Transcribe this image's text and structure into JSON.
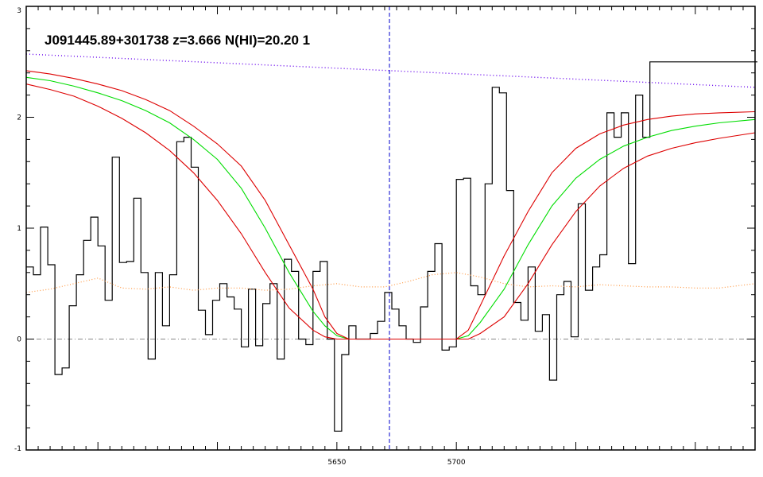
{
  "chart_data": {
    "type": "line",
    "title": "J091445.89+301738 z=3.666 N(HI)=20.20 1",
    "xlabel": "",
    "ylabel": "",
    "xlim": [
      5520,
      5825
    ],
    "ylim": [
      -1,
      3
    ],
    "x_ticks": [
      5650,
      5700
    ],
    "x_tick_labels": [
      "5650",
      "5700"
    ],
    "x_minor_step": 5,
    "x_major_step": 50,
    "y_ticks": [
      -1,
      0,
      1,
      2,
      3
    ],
    "y_tick_labels": [
      "-1",
      "0",
      "1",
      "2",
      "3"
    ],
    "grid": false,
    "legend": "none",
    "reference_line_x": 5672,
    "zero_line_y": 0,
    "colors": {
      "flux": "#000000",
      "model": "#00dd00",
      "model_bounds": "#dd0000",
      "continuum": "#6600ee",
      "error": "#ff9944",
      "reference": "#0000cc",
      "zero": "#888888"
    },
    "series": [
      {
        "id": "flux",
        "style": "step",
        "x": [
          5520,
          5523,
          5526,
          5529,
          5532,
          5535,
          5538,
          5541,
          5544,
          5547,
          5550,
          5553,
          5556,
          5559,
          5562,
          5565,
          5568,
          5571,
          5574,
          5577,
          5580,
          5583,
          5586,
          5589,
          5592,
          5595,
          5598,
          5601,
          5604,
          5607,
          5610,
          5613,
          5616,
          5619,
          5622,
          5625,
          5628,
          5631,
          5634,
          5637,
          5640,
          5643,
          5646,
          5649,
          5652,
          5655,
          5658,
          5661,
          5664,
          5667,
          5670,
          5673,
          5676,
          5679,
          5682,
          5685,
          5688,
          5691,
          5694,
          5697,
          5700,
          5703,
          5706,
          5709,
          5712,
          5715,
          5718,
          5721,
          5724,
          5727,
          5730,
          5733,
          5736,
          5739,
          5742,
          5745,
          5748,
          5751,
          5754,
          5757,
          5760,
          5763,
          5766,
          5769,
          5772,
          5775,
          5778,
          5781,
          5784,
          5787,
          5790,
          5793,
          5796,
          5799,
          5802,
          5805,
          5808,
          5811,
          5814,
          5817,
          5820,
          5823
        ],
        "y": [
          0.65,
          0.58,
          1.01,
          0.67,
          -0.32,
          -0.26,
          0.3,
          0.58,
          0.89,
          1.1,
          0.84,
          0.35,
          1.64,
          0.69,
          0.7,
          1.27,
          0.6,
          -0.18,
          0.6,
          0.12,
          0.58,
          1.78,
          1.82,
          1.55,
          0.26,
          0.04,
          0.35,
          0.5,
          0.38,
          0.27,
          -0.07,
          0.45,
          -0.06,
          0.32,
          0.5,
          -0.18,
          0.72,
          0.61,
          0.0,
          -0.05,
          0.61,
          0.7,
          0.0,
          -0.83,
          -0.14,
          0.12,
          0.0,
          0.0,
          0.05,
          0.16,
          0.42,
          0.27,
          0.12,
          0.0,
          -0.03,
          0.29,
          0.61,
          0.86,
          -0.1,
          -0.07,
          1.44,
          1.45,
          0.48,
          0.4,
          1.4,
          2.27,
          2.22,
          1.34,
          0.33,
          0.17,
          0.65,
          0.07,
          0.22,
          -0.37,
          0.4,
          0.52,
          0.02,
          1.22,
          0.44,
          0.65,
          0.76,
          2.04,
          1.82,
          2.04,
          0.68,
          2.2,
          1.82,
          2.5,
          2.5,
          2.5,
          2.5,
          2.5,
          2.5,
          2.5,
          2.5,
          2.5,
          2.5,
          2.5,
          2.5,
          2.5,
          2.5,
          2.5
        ]
      },
      {
        "id": "model",
        "style": "line",
        "x": [
          5520,
          5530,
          5540,
          5550,
          5560,
          5570,
          5580,
          5590,
          5600,
          5610,
          5620,
          5630,
          5640,
          5645,
          5650,
          5655,
          5660,
          5665,
          5670,
          5675,
          5680,
          5685,
          5690,
          5695,
          5700,
          5705,
          5710,
          5720,
          5730,
          5740,
          5750,
          5760,
          5770,
          5780,
          5790,
          5800,
          5810,
          5825
        ],
        "y": [
          2.36,
          2.33,
          2.28,
          2.22,
          2.15,
          2.06,
          1.95,
          1.8,
          1.62,
          1.36,
          1.0,
          0.6,
          0.25,
          0.12,
          0.03,
          0.0,
          0.0,
          0.0,
          0.0,
          0.0,
          0.0,
          0.0,
          0.0,
          0.0,
          0.0,
          0.03,
          0.15,
          0.45,
          0.85,
          1.2,
          1.45,
          1.62,
          1.74,
          1.82,
          1.88,
          1.92,
          1.95,
          1.98
        ]
      },
      {
        "id": "model_upper",
        "style": "line",
        "x": [
          5520,
          5530,
          5540,
          5550,
          5560,
          5570,
          5580,
          5590,
          5600,
          5610,
          5620,
          5630,
          5640,
          5645,
          5650,
          5655,
          5660,
          5665,
          5670,
          5675,
          5680,
          5685,
          5690,
          5695,
          5700,
          5705,
          5710,
          5720,
          5730,
          5740,
          5750,
          5760,
          5770,
          5780,
          5790,
          5800,
          5810,
          5825
        ],
        "y": [
          2.42,
          2.39,
          2.35,
          2.3,
          2.24,
          2.16,
          2.06,
          1.92,
          1.76,
          1.56,
          1.25,
          0.85,
          0.45,
          0.2,
          0.05,
          0.0,
          0.0,
          0.0,
          0.0,
          0.0,
          0.0,
          0.0,
          0.0,
          0.0,
          0.0,
          0.08,
          0.3,
          0.75,
          1.15,
          1.5,
          1.72,
          1.85,
          1.93,
          1.98,
          2.01,
          2.03,
          2.04,
          2.05
        ]
      },
      {
        "id": "model_lower",
        "style": "line",
        "x": [
          5520,
          5530,
          5540,
          5550,
          5560,
          5570,
          5580,
          5590,
          5600,
          5610,
          5620,
          5630,
          5640,
          5645,
          5650,
          5655,
          5660,
          5665,
          5670,
          5675,
          5680,
          5685,
          5690,
          5695,
          5700,
          5705,
          5710,
          5720,
          5730,
          5740,
          5750,
          5760,
          5770,
          5780,
          5790,
          5800,
          5810,
          5825
        ],
        "y": [
          2.3,
          2.25,
          2.19,
          2.1,
          1.99,
          1.86,
          1.7,
          1.5,
          1.25,
          0.95,
          0.6,
          0.28,
          0.08,
          0.02,
          0.0,
          0.0,
          0.0,
          0.0,
          0.0,
          0.0,
          0.0,
          0.0,
          0.0,
          0.0,
          0.0,
          0.0,
          0.05,
          0.2,
          0.5,
          0.85,
          1.15,
          1.38,
          1.54,
          1.65,
          1.72,
          1.77,
          1.81,
          1.86
        ]
      },
      {
        "id": "continuum",
        "style": "dotted",
        "x": [
          5520,
          5825
        ],
        "y": [
          2.57,
          2.27
        ]
      },
      {
        "id": "error",
        "style": "dotted",
        "x": [
          5520,
          5530,
          5540,
          5550,
          5560,
          5570,
          5580,
          5590,
          5600,
          5610,
          5620,
          5630,
          5640,
          5650,
          5660,
          5670,
          5680,
          5690,
          5700,
          5710,
          5720,
          5730,
          5740,
          5750,
          5760,
          5770,
          5780,
          5790,
          5800,
          5810,
          5825
        ],
        "y": [
          0.42,
          0.45,
          0.5,
          0.55,
          0.46,
          0.45,
          0.47,
          0.44,
          0.46,
          0.46,
          0.44,
          0.45,
          0.48,
          0.5,
          0.47,
          0.47,
          0.52,
          0.58,
          0.6,
          0.56,
          0.5,
          0.47,
          0.48,
          0.47,
          0.49,
          0.48,
          0.47,
          0.47,
          0.46,
          0.46,
          0.5
        ]
      }
    ]
  }
}
